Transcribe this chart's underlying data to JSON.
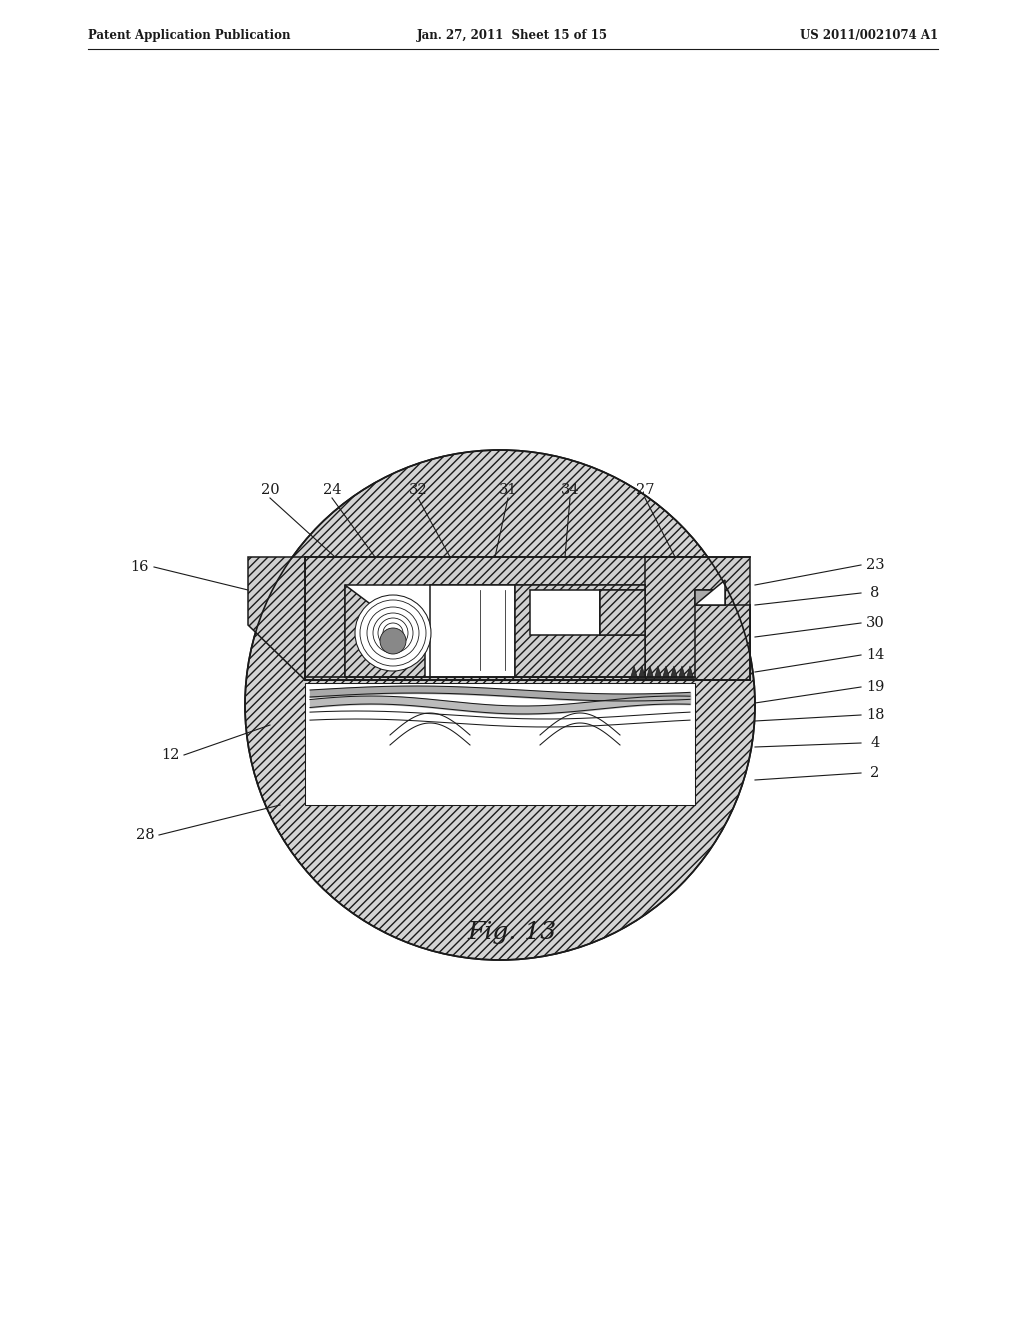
{
  "header_left": "Patent Application Publication",
  "header_center": "Jan. 27, 2011  Sheet 15 of 15",
  "header_right": "US 2011/0021074 A1",
  "fig_label": "Fig. 13",
  "bg_color": "#ffffff",
  "line_color": "#1a1a1a"
}
